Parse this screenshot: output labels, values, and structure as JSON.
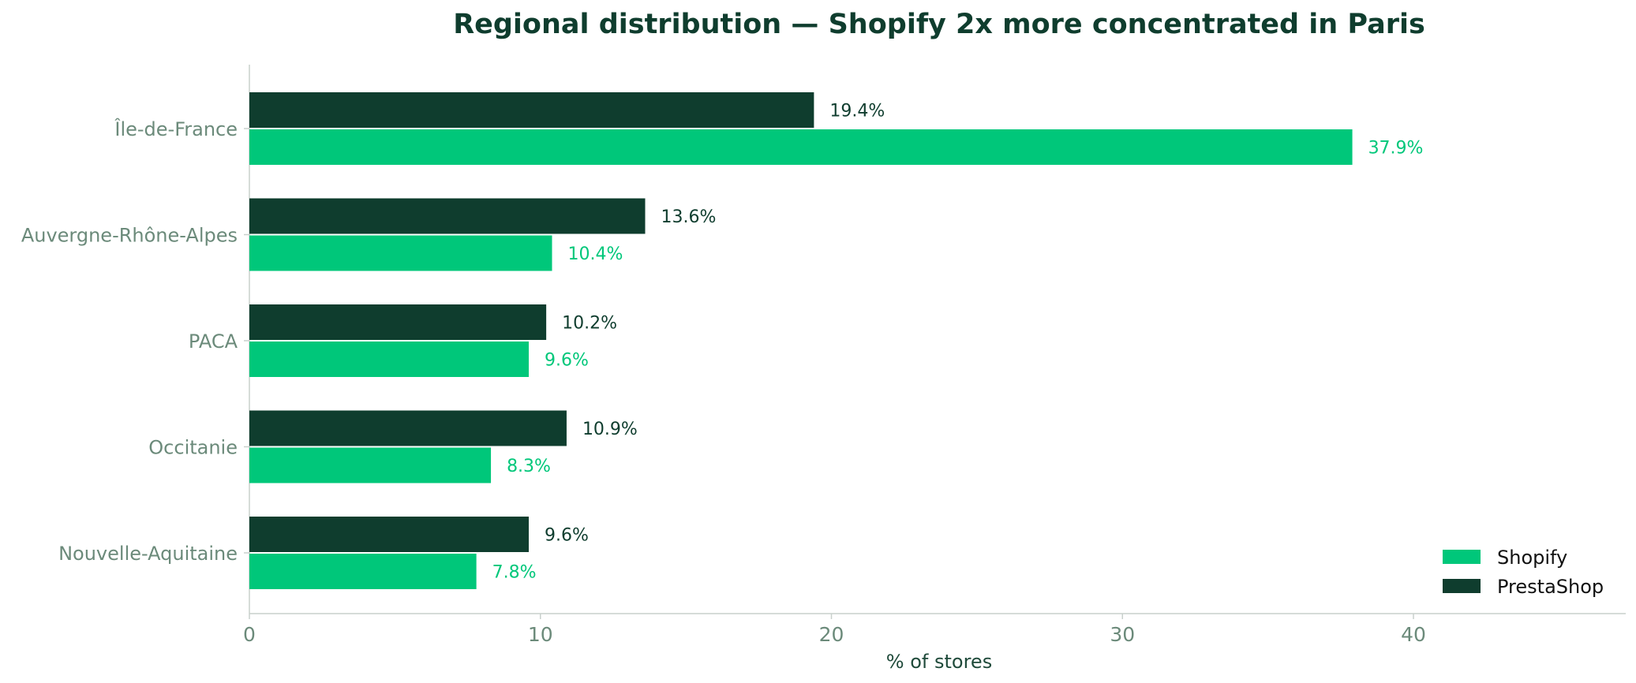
{
  "chart_data": {
    "type": "bar",
    "orientation": "horizontal",
    "title": "Regional distribution — Shopify 2x more concentrated in Paris",
    "xlabel": "% of stores",
    "ylabel": "",
    "xlim": [
      0,
      48
    ],
    "xticks": [
      0,
      10,
      20,
      30,
      40
    ],
    "grid": false,
    "legend_position": "bottom-right",
    "categories": [
      "Île-de-France",
      "Auvergne-Rhône-Alpes",
      "PACA",
      "Occitanie",
      "Nouvelle-Aquitaine"
    ],
    "series": [
      {
        "name": "Shopify",
        "color": "#00c77a",
        "values": [
          37.9,
          10.4,
          9.6,
          8.3,
          7.8
        ],
        "labels": [
          "37.9%",
          "10.4%",
          "9.6%",
          "8.3%",
          "7.8%"
        ]
      },
      {
        "name": "PrestaShop",
        "color": "#0f3d2e",
        "values": [
          19.4,
          13.6,
          10.2,
          10.9,
          9.6
        ],
        "labels": [
          "19.4%",
          "13.6%",
          "10.2%",
          "10.9%",
          "9.6%"
        ]
      }
    ],
    "colors": {
      "title": "#0f3d2e",
      "category_label": "#6b8a7a",
      "tick_label": "#6b8a7a",
      "axis_label": "#1f4a3a",
      "axis_line": "#c8d0cc"
    }
  }
}
